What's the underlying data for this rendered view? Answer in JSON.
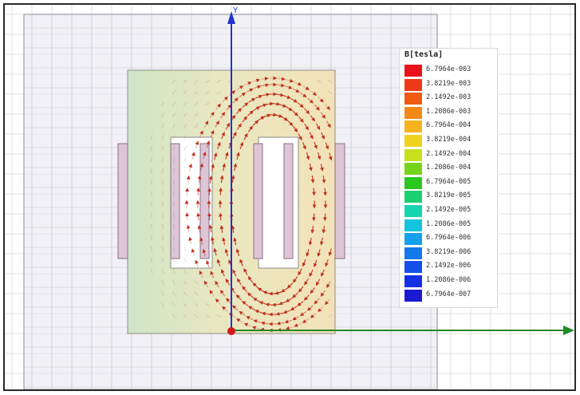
{
  "viewport": {
    "axis_y_label": "Y",
    "colors": {
      "background_grid": "#f4f4f6",
      "grid_line": "#c8c8d2",
      "region_box": "#e4e4ea",
      "core_fill_left": "#cfe5c7",
      "core_fill_right": "#f3e2b8",
      "coil": "#dcc6d6",
      "coil_stroke": "#8a6e82",
      "arrow": "#c0301e",
      "y_axis": "#2233cc",
      "x_axis": "#22882a",
      "origin": "#d01818"
    }
  },
  "legend": {
    "title": "B[tesla]",
    "entries": [
      {
        "label": "6.7964e-003",
        "color": "#e8141a"
      },
      {
        "label": "3.8219e-003",
        "color": "#ec3a18"
      },
      {
        "label": "2.1492e-003",
        "color": "#f05c14"
      },
      {
        "label": "1.2086e-003",
        "color": "#f4891a"
      },
      {
        "label": "6.7964e-004",
        "color": "#f6b21c"
      },
      {
        "label": "3.8219e-004",
        "color": "#eed21e"
      },
      {
        "label": "2.1492e-004",
        "color": "#c6e01e"
      },
      {
        "label": "1.2086e-004",
        "color": "#76d41c"
      },
      {
        "label": "6.7964e-005",
        "color": "#2ac81c"
      },
      {
        "label": "3.8219e-005",
        "color": "#1ad070"
      },
      {
        "label": "2.1492e-005",
        "color": "#16d4b0"
      },
      {
        "label": "1.2086e-005",
        "color": "#14c4de"
      },
      {
        "label": "6.7964e-006",
        "color": "#14a0ea"
      },
      {
        "label": "3.8219e-006",
        "color": "#1478ec"
      },
      {
        "label": "2.1492e-006",
        "color": "#1450e8"
      },
      {
        "label": "1.2086e-006",
        "color": "#1430e4"
      },
      {
        "label": "6.7964e-007",
        "color": "#1a1ad2"
      }
    ]
  }
}
